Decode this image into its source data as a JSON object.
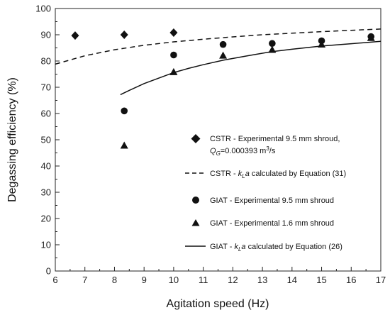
{
  "chart_data": {
    "type": "scatter",
    "xlabel": "Agitation speed (Hz)",
    "ylabel": "Degassing efficiency (%)",
    "xlim": [
      6,
      17
    ],
    "ylim": [
      0,
      100
    ],
    "xticks": [
      6,
      7,
      8,
      9,
      10,
      11,
      12,
      13,
      14,
      15,
      16,
      17
    ],
    "yticks": [
      0,
      10,
      20,
      30,
      40,
      50,
      60,
      70,
      80,
      90,
      100
    ],
    "grid": false,
    "legend_position": "bottom-right",
    "series": [
      {
        "name": "CSTR - Experimental 9.5 mm shroud, Q_G=0.000393 m³/s",
        "legend_parts": [
          {
            "text": "CSTR - Experimental 9.5 mm shroud,"
          },
          {
            "q": "Q",
            "q_sub": "G",
            "value": "=0.000393 m",
            "sup": "3",
            "unit": "/s"
          }
        ],
        "marker": "diamond",
        "x": [
          6.67,
          8.33,
          10.0
        ],
        "y": [
          89.7,
          90.0,
          90.8
        ]
      },
      {
        "name": "CSTR - kLa calculated by Equation (31)",
        "legend_parts": {
          "prefix": "CSTR - ",
          "k": "k",
          "k_sub": "L",
          "a": "a",
          "suffix": " calculated by Equation (31)"
        },
        "line": "dashed",
        "x": [
          6.0,
          7.0,
          8.0,
          9.0,
          10.0,
          11.0,
          12.0,
          13.0,
          14.0,
          15.0,
          16.0,
          17.0
        ],
        "y": [
          78.8,
          82.0,
          84.3,
          86.0,
          87.3,
          88.3,
          89.2,
          90.0,
          90.6,
          91.2,
          91.7,
          92.2
        ]
      },
      {
        "name": "GIAT - Experimental 9.5 mm shroud",
        "marker": "circle",
        "x": [
          8.33,
          10.0,
          11.67,
          13.33,
          15.0,
          16.67
        ],
        "y": [
          61.0,
          82.3,
          86.3,
          86.7,
          87.7,
          89.3
        ]
      },
      {
        "name": "GIAT - Experimental 1.6 mm shroud",
        "marker": "triangle",
        "x": [
          8.33,
          10.0,
          11.67,
          13.33,
          15.0,
          16.67
        ],
        "y": [
          47.7,
          75.7,
          82.0,
          84.2,
          86.2,
          88.7
        ]
      },
      {
        "name": "GIAT - kLa calculated by Equation (26)",
        "legend_parts": {
          "prefix": "GIAT - ",
          "k": "k",
          "k_sub": "L",
          "a": "a",
          "suffix": " calculated by Equation (26)"
        },
        "line": "solid",
        "x": [
          8.2,
          8.5,
          9.0,
          9.5,
          10.0,
          10.5,
          11.0,
          11.67,
          12.5,
          13.33,
          14.0,
          15.0,
          16.0,
          16.67,
          17.0
        ],
        "y": [
          67.2,
          68.8,
          71.4,
          73.5,
          75.6,
          77.2,
          78.6,
          80.3,
          82.0,
          83.6,
          84.5,
          85.7,
          86.6,
          87.2,
          87.5
        ]
      }
    ]
  }
}
